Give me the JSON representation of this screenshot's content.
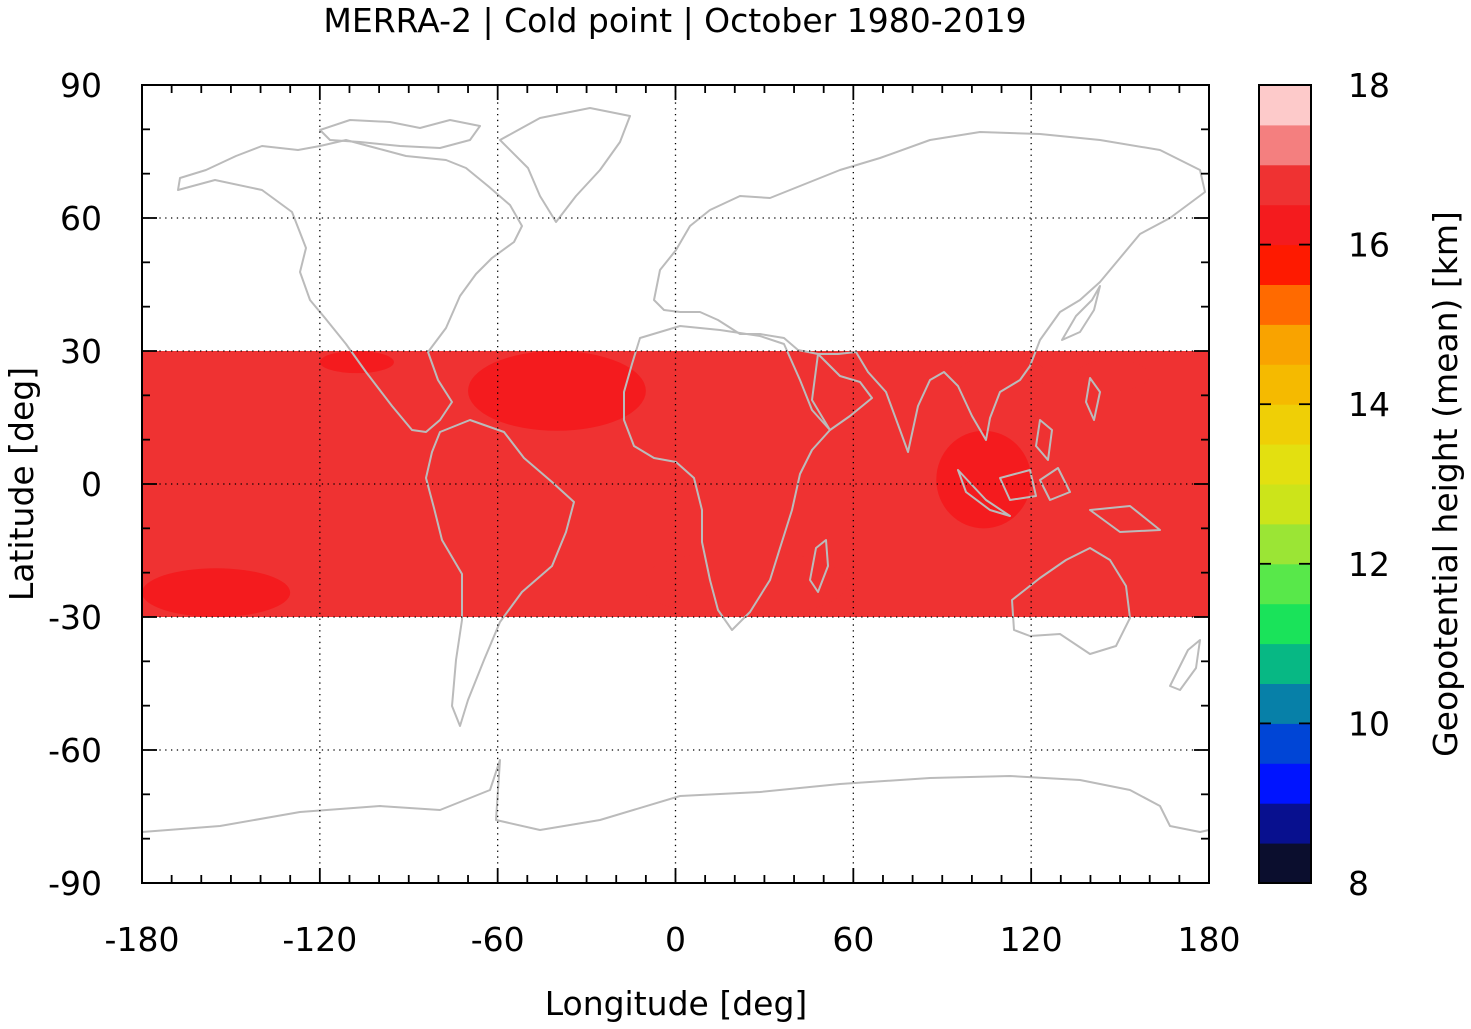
{
  "chart_data": {
    "type": "heatmap",
    "title": "MERRA-2 | Cold point | October 1980-2019",
    "xlabel": "Longitude [deg]",
    "ylabel": "Latitude [deg]",
    "xlim": [
      -180,
      180
    ],
    "ylim": [
      -90,
      90
    ],
    "x_ticks": [
      -180,
      -120,
      -60,
      0,
      60,
      120,
      180
    ],
    "y_ticks": [
      90,
      60,
      30,
      0,
      -30,
      -60,
      -90
    ],
    "grid": true,
    "data_lat_range": [
      -30,
      30
    ],
    "background_value_km": 16.5,
    "regions": [
      {
        "lon": [
          -180,
          -130
        ],
        "lat": [
          -30,
          -19
        ],
        "value_km": 16.25
      },
      {
        "lon": [
          -70,
          -10
        ],
        "lat": [
          12,
          30
        ],
        "value_km": 16.25
      },
      {
        "lon": [
          -120,
          -95
        ],
        "lat": [
          25,
          30
        ],
        "value_km": 16.25
      },
      {
        "lon": [
          88,
          120
        ],
        "lat": [
          -10,
          12
        ],
        "value_km": 16.25
      },
      {
        "lon": [
          -70,
          -63
        ],
        "lat": [
          -30,
          -19
        ],
        "value_km": 16.75
      },
      {
        "lon": [
          -12,
          58
        ],
        "lat": [
          -30,
          -15
        ],
        "value_km": 16.75
      },
      {
        "lon": [
          95,
          125
        ],
        "lat": [
          20,
          29
        ],
        "value_km": 16.75
      },
      {
        "lon": [
          135,
          160
        ],
        "lat": [
          21,
          28
        ],
        "value_km": 16.75
      },
      {
        "lon": [
          60,
          75
        ],
        "lat": [
          27,
          30
        ],
        "value_km": 16.75
      }
    ],
    "colorbar": {
      "label": "Geopotential height (mean) [km]",
      "range": [
        8,
        18
      ],
      "ticks": [
        8,
        10,
        12,
        14,
        16,
        18
      ],
      "levels": [
        {
          "from": 8.0,
          "to": 8.5,
          "color": "#0b0e2e"
        },
        {
          "from": 8.5,
          "to": 9.0,
          "color": "#08108f"
        },
        {
          "from": 9.0,
          "to": 9.5,
          "color": "#0014ff"
        },
        {
          "from": 9.5,
          "to": 10.0,
          "color": "#0045d6"
        },
        {
          "from": 10.0,
          "to": 10.5,
          "color": "#0780a8"
        },
        {
          "from": 10.5,
          "to": 11.0,
          "color": "#07b884"
        },
        {
          "from": 11.0,
          "to": 11.5,
          "color": "#1ae35a"
        },
        {
          "from": 11.5,
          "to": 12.0,
          "color": "#58e84a"
        },
        {
          "from": 12.0,
          "to": 12.5,
          "color": "#9be535"
        },
        {
          "from": 12.5,
          "to": 13.0,
          "color": "#cce41a"
        },
        {
          "from": 13.0,
          "to": 13.5,
          "color": "#e3e010"
        },
        {
          "from": 13.5,
          "to": 14.0,
          "color": "#efcf06"
        },
        {
          "from": 14.0,
          "to": 14.5,
          "color": "#f5ba00"
        },
        {
          "from": 14.5,
          "to": 15.0,
          "color": "#f9a300"
        },
        {
          "from": 15.0,
          "to": 15.5,
          "color": "#ff6a00"
        },
        {
          "from": 15.5,
          "to": 16.0,
          "color": "#fe1a00"
        },
        {
          "from": 16.0,
          "to": 16.5,
          "color": "#f41b1e"
        },
        {
          "from": 16.5,
          "to": 17.0,
          "color": "#ef3232"
        },
        {
          "from": 17.0,
          "to": 17.5,
          "color": "#f47f7f"
        },
        {
          "from": 17.5,
          "to": 18.0,
          "color": "#fdcaca"
        }
      ]
    }
  }
}
